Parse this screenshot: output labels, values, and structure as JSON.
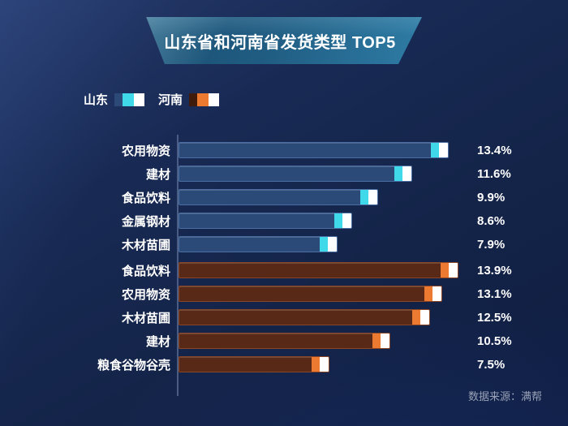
{
  "header": {
    "title": "山东省和河南省发货类型 TOP5"
  },
  "footer": {
    "source": "数据来源：满帮"
  },
  "colors": {
    "bg_light": "#263a6c",
    "bg_mid": "#182a54",
    "bg_deep": "#0f1c40",
    "banner_dark": "#1a4e71",
    "banner_light": "#2e7ca5",
    "shandong_body": "#2c4a78",
    "shandong_border": "#4a6da3",
    "shandong_accent": "#3fd9e9",
    "henan_body": "#572916",
    "henan_border": "#8a4526",
    "henan_accent": "#ec7a31",
    "tip_white": "#ffffff",
    "axis_line": "#5c6f96",
    "text_primary": "#ffffff",
    "text_muted": "#99a2b6"
  },
  "chart_data": {
    "type": "bar",
    "orientation": "horizontal",
    "title": "山东省和河南省发货类型 TOP5",
    "unit": "%",
    "xlim": [
      0,
      14.5
    ],
    "grid": false,
    "legend_position": "top-left",
    "series": [
      {
        "name": "山东",
        "key": "shandong",
        "categories": [
          "农用物资",
          "建材",
          "食品饮料",
          "金属钢材",
          "木材苗圃"
        ],
        "values": [
          13.4,
          11.6,
          9.9,
          8.6,
          7.9
        ]
      },
      {
        "name": "河南",
        "key": "henan",
        "categories": [
          "食品饮料",
          "农用物资",
          "木材苗圃",
          "建材",
          "粮食谷物谷壳"
        ],
        "values": [
          13.9,
          13.1,
          12.5,
          10.5,
          7.5
        ]
      }
    ]
  }
}
